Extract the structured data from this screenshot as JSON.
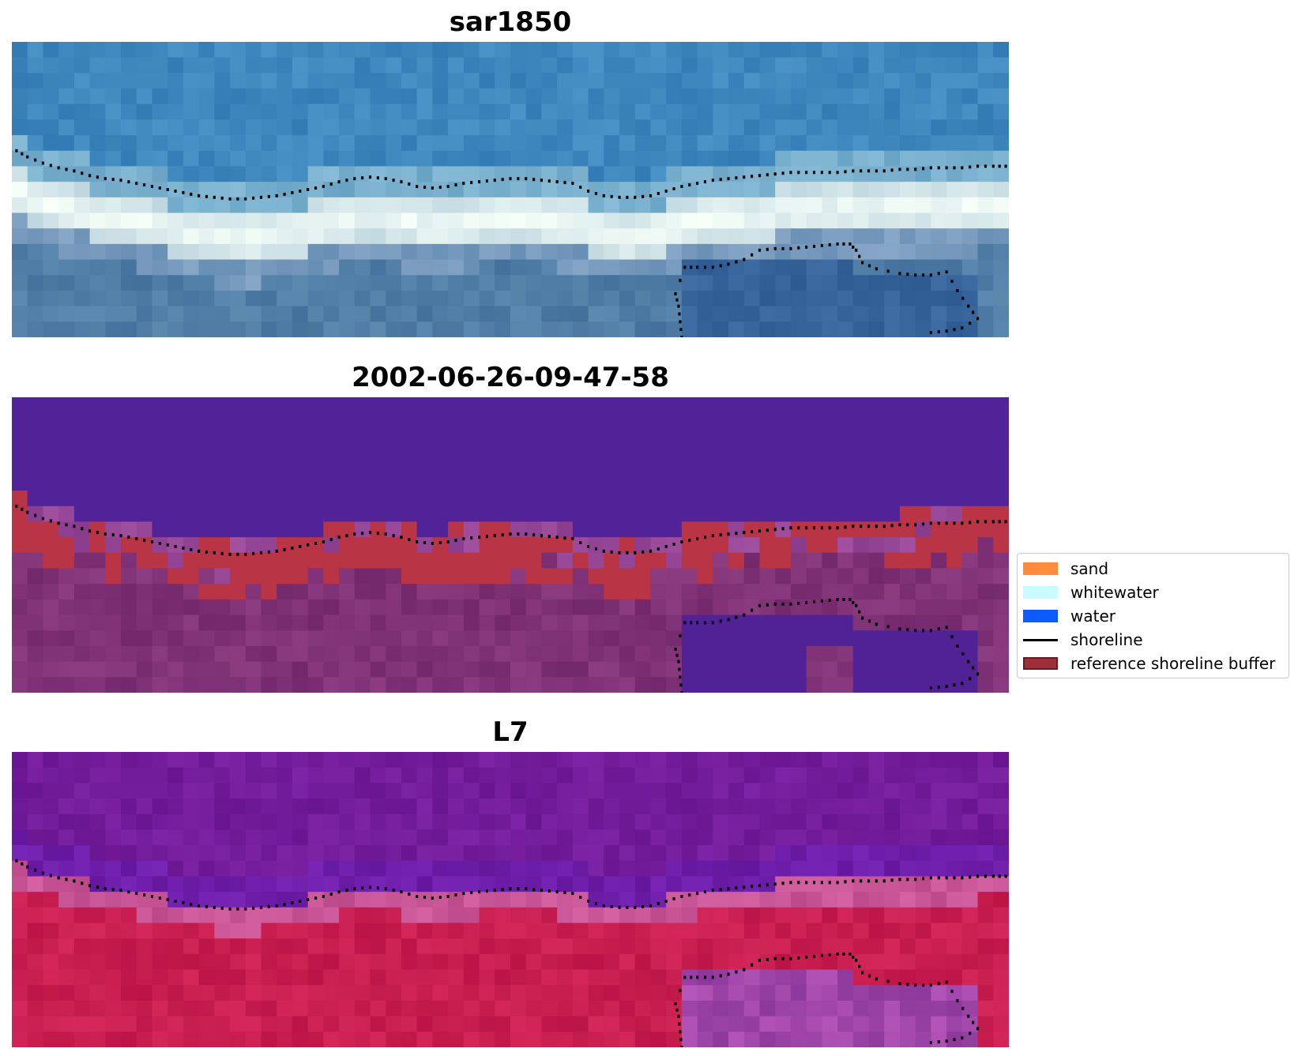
{
  "figure": {
    "panels": [
      {
        "title": "sar1850",
        "kind": "rgb"
      },
      {
        "title": "2002-06-26-09-47-58",
        "kind": "classification"
      },
      {
        "title": "L7",
        "kind": "false-color"
      }
    ],
    "legend": {
      "items": [
        {
          "label": "sand",
          "color": "#ff8c3a",
          "kind": "patch"
        },
        {
          "label": "whitewater",
          "color": "#c8fcff",
          "kind": "patch"
        },
        {
          "label": "water",
          "color": "#0a5cff",
          "kind": "patch"
        },
        {
          "label": "shoreline",
          "color": "#000000",
          "kind": "line"
        },
        {
          "label": "reference shoreline buffer",
          "color": "#9e2f3a",
          "kind": "patch-outlined"
        }
      ]
    }
  },
  "chart_data": {
    "type": "heatmap",
    "title": "",
    "xlabel": "",
    "ylabel": "",
    "grid": false,
    "legend_position": "center-right",
    "image_grid": {
      "columns": 64,
      "rows": 19
    },
    "shoreline": {
      "label": "shoreline",
      "style": "dotted",
      "color": "#000000",
      "segments": [
        [
          [
            0.3,
            7.0
          ],
          [
            1,
            7.4
          ],
          [
            2,
            7.8
          ],
          [
            3,
            8.1
          ],
          [
            4,
            8.3
          ],
          [
            5,
            8.6
          ],
          [
            6,
            8.8
          ],
          [
            7,
            8.9
          ],
          [
            8,
            9.1
          ],
          [
            9,
            9.3
          ],
          [
            10,
            9.5
          ],
          [
            11,
            9.7
          ],
          [
            12,
            9.9
          ],
          [
            13,
            10.0
          ],
          [
            14,
            10.1
          ],
          [
            15,
            10.1
          ],
          [
            16,
            10.0
          ],
          [
            17,
            9.9
          ],
          [
            18,
            9.7
          ],
          [
            19,
            9.5
          ],
          [
            20,
            9.3
          ],
          [
            21,
            9.0
          ],
          [
            22,
            8.8
          ],
          [
            23,
            8.7
          ],
          [
            24,
            8.8
          ],
          [
            25,
            9.0
          ],
          [
            26,
            9.3
          ],
          [
            27,
            9.4
          ],
          [
            28,
            9.3
          ],
          [
            29,
            9.1
          ],
          [
            30,
            9.0
          ],
          [
            31,
            8.9
          ],
          [
            32,
            8.8
          ],
          [
            33,
            8.8
          ],
          [
            34,
            8.9
          ],
          [
            35,
            9.0
          ],
          [
            36,
            9.1
          ],
          [
            37,
            9.6
          ],
          [
            38,
            9.9
          ],
          [
            39,
            10.0
          ],
          [
            40,
            10.0
          ],
          [
            41,
            9.9
          ],
          [
            42,
            9.6
          ],
          [
            43,
            9.3
          ],
          [
            44,
            9.1
          ],
          [
            45,
            8.9
          ],
          [
            46,
            8.8
          ],
          [
            47,
            8.7
          ],
          [
            48,
            8.6
          ],
          [
            49,
            8.5
          ],
          [
            50,
            8.4
          ],
          [
            51,
            8.4
          ],
          [
            52,
            8.4
          ],
          [
            53,
            8.4
          ],
          [
            54,
            8.3
          ],
          [
            55,
            8.3
          ],
          [
            56,
            8.3
          ],
          [
            57,
            8.2
          ],
          [
            58,
            8.2
          ],
          [
            59,
            8.1
          ],
          [
            60,
            8.1
          ],
          [
            61,
            8.1
          ],
          [
            62,
            8.0
          ],
          [
            63,
            8.0
          ],
          [
            63.8,
            8.0
          ]
        ],
        [
          [
            43,
            19.0
          ],
          [
            42.9,
            18.0
          ],
          [
            42.8,
            17.0
          ],
          [
            42.6,
            16.2
          ],
          [
            43.2,
            14.5
          ],
          [
            44,
            14.5
          ],
          [
            45,
            14.5
          ],
          [
            46,
            14.3
          ],
          [
            47,
            14.0
          ],
          [
            48,
            13.4
          ],
          [
            49,
            13.3
          ],
          [
            50,
            13.3
          ],
          [
            51,
            13.2
          ],
          [
            52,
            13.1
          ],
          [
            53,
            13.0
          ],
          [
            53.8,
            13.0
          ],
          [
            54.2,
            13.4
          ],
          [
            54.6,
            14.2
          ],
          [
            55.5,
            14.6
          ],
          [
            57,
            14.9
          ],
          [
            58,
            15.0
          ],
          [
            59,
            15.0
          ],
          [
            60,
            14.8
          ],
          [
            60.7,
            16.0
          ],
          [
            61.4,
            17.0
          ],
          [
            62.0,
            17.8
          ],
          [
            61.0,
            18.4
          ],
          [
            60.0,
            18.6
          ],
          [
            59.0,
            18.7
          ]
        ]
      ]
    }
  }
}
